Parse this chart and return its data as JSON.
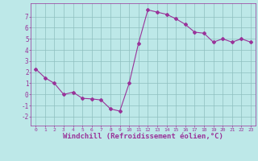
{
  "x": [
    0,
    1,
    2,
    3,
    4,
    5,
    6,
    7,
    8,
    9,
    10,
    11,
    12,
    13,
    14,
    15,
    16,
    17,
    18,
    19,
    20,
    21,
    22,
    23
  ],
  "y": [
    2.3,
    1.5,
    1.0,
    0.0,
    0.2,
    -0.35,
    -0.4,
    -0.5,
    -1.3,
    -1.5,
    1.0,
    4.6,
    7.6,
    7.4,
    7.2,
    6.8,
    6.3,
    5.6,
    5.5,
    4.7,
    5.0,
    4.7,
    5.0,
    4.7
  ],
  "line_color": "#993399",
  "marker": "D",
  "marker_size": 2,
  "bg_color": "#bde8e8",
  "grid_color": "#8fbfbf",
  "xlabel": "Windchill (Refroidissement éolien,°C)",
  "xlim": [
    -0.5,
    23.5
  ],
  "ylim": [
    -2.8,
    8.2
  ],
  "yticks": [
    -2,
    -1,
    0,
    1,
    2,
    3,
    4,
    5,
    6,
    7
  ],
  "xticks": [
    0,
    1,
    2,
    3,
    4,
    5,
    6,
    7,
    8,
    9,
    10,
    11,
    12,
    13,
    14,
    15,
    16,
    17,
    18,
    19,
    20,
    21,
    22,
    23
  ]
}
